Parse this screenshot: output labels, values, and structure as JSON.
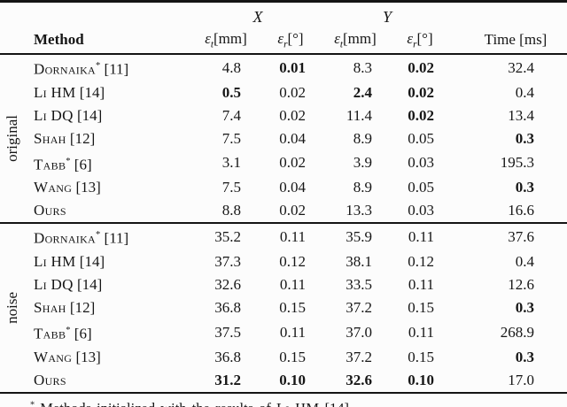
{
  "header": {
    "group_x": "X",
    "group_y": "Y",
    "method_label": "Method",
    "metric_columns": [
      {
        "symbol": "ε",
        "subscript": "t",
        "unit": "[mm]",
        "axis": "X"
      },
      {
        "symbol": "ε",
        "subscript": "r",
        "unit": "[°]",
        "axis": "X"
      },
      {
        "symbol": "ε",
        "subscript": "t",
        "unit": "[mm]",
        "axis": "Y"
      },
      {
        "symbol": "ε",
        "subscript": "r",
        "unit": "[°]",
        "axis": "Y"
      }
    ],
    "time_label": "Time [ms]"
  },
  "sections": [
    {
      "label": "original",
      "rows": [
        {
          "method": "Dornaika",
          "marker": "*",
          "ref": "[11]",
          "values": [
            {
              "v": "4.8",
              "bold": false
            },
            {
              "v": "0.01",
              "bold": true
            },
            {
              "v": "8.3",
              "bold": false
            },
            {
              "v": "0.02",
              "bold": true
            },
            {
              "v": "32.4",
              "bold": false
            }
          ]
        },
        {
          "method": "Li HM",
          "marker": "",
          "ref": "[14]",
          "values": [
            {
              "v": "0.5",
              "bold": true
            },
            {
              "v": "0.02",
              "bold": false
            },
            {
              "v": "2.4",
              "bold": true
            },
            {
              "v": "0.02",
              "bold": true
            },
            {
              "v": "0.4",
              "bold": false
            }
          ]
        },
        {
          "method": "Li DQ",
          "marker": "",
          "ref": "[14]",
          "values": [
            {
              "v": "7.4",
              "bold": false
            },
            {
              "v": "0.02",
              "bold": false
            },
            {
              "v": "11.4",
              "bold": false
            },
            {
              "v": "0.02",
              "bold": true
            },
            {
              "v": "13.4",
              "bold": false
            }
          ]
        },
        {
          "method": "Shah",
          "marker": "",
          "ref": "[12]",
          "values": [
            {
              "v": "7.5",
              "bold": false
            },
            {
              "v": "0.04",
              "bold": false
            },
            {
              "v": "8.9",
              "bold": false
            },
            {
              "v": "0.05",
              "bold": false
            },
            {
              "v": "0.3",
              "bold": true
            }
          ]
        },
        {
          "method": "Tabb",
          "marker": "*",
          "ref": "[6]",
          "values": [
            {
              "v": "3.1",
              "bold": false
            },
            {
              "v": "0.02",
              "bold": false
            },
            {
              "v": "3.9",
              "bold": false
            },
            {
              "v": "0.03",
              "bold": false
            },
            {
              "v": "195.3",
              "bold": false
            }
          ]
        },
        {
          "method": "Wang",
          "marker": "",
          "ref": "[13]",
          "values": [
            {
              "v": "7.5",
              "bold": false
            },
            {
              "v": "0.04",
              "bold": false
            },
            {
              "v": "8.9",
              "bold": false
            },
            {
              "v": "0.05",
              "bold": false
            },
            {
              "v": "0.3",
              "bold": true
            }
          ]
        },
        {
          "method": "Ours",
          "marker": "",
          "ref": "",
          "values": [
            {
              "v": "8.8",
              "bold": false
            },
            {
              "v": "0.02",
              "bold": false
            },
            {
              "v": "13.3",
              "bold": false
            },
            {
              "v": "0.03",
              "bold": false
            },
            {
              "v": "16.6",
              "bold": false
            }
          ]
        }
      ]
    },
    {
      "label": "noise",
      "rows": [
        {
          "method": "Dornaika",
          "marker": "*",
          "ref": "[11]",
          "values": [
            {
              "v": "35.2",
              "bold": false
            },
            {
              "v": "0.11",
              "bold": false
            },
            {
              "v": "35.9",
              "bold": false
            },
            {
              "v": "0.11",
              "bold": false
            },
            {
              "v": "37.6",
              "bold": false
            }
          ]
        },
        {
          "method": "Li HM",
          "marker": "",
          "ref": "[14]",
          "values": [
            {
              "v": "37.3",
              "bold": false
            },
            {
              "v": "0.12",
              "bold": false
            },
            {
              "v": "38.1",
              "bold": false
            },
            {
              "v": "0.12",
              "bold": false
            },
            {
              "v": "0.4",
              "bold": false
            }
          ]
        },
        {
          "method": "Li DQ",
          "marker": "",
          "ref": "[14]",
          "values": [
            {
              "v": "32.6",
              "bold": false
            },
            {
              "v": "0.11",
              "bold": false
            },
            {
              "v": "33.5",
              "bold": false
            },
            {
              "v": "0.11",
              "bold": false
            },
            {
              "v": "12.6",
              "bold": false
            }
          ]
        },
        {
          "method": "Shah",
          "marker": "",
          "ref": "[12]",
          "values": [
            {
              "v": "36.8",
              "bold": false
            },
            {
              "v": "0.15",
              "bold": false
            },
            {
              "v": "37.2",
              "bold": false
            },
            {
              "v": "0.15",
              "bold": false
            },
            {
              "v": "0.3",
              "bold": true
            }
          ]
        },
        {
          "method": "Tabb",
          "marker": "*",
          "ref": "[6]",
          "values": [
            {
              "v": "37.5",
              "bold": false
            },
            {
              "v": "0.11",
              "bold": false
            },
            {
              "v": "37.0",
              "bold": false
            },
            {
              "v": "0.11",
              "bold": false
            },
            {
              "v": "268.9",
              "bold": false
            }
          ]
        },
        {
          "method": "Wang",
          "marker": "",
          "ref": "[13]",
          "values": [
            {
              "v": "36.8",
              "bold": false
            },
            {
              "v": "0.15",
              "bold": false
            },
            {
              "v": "37.2",
              "bold": false
            },
            {
              "v": "0.15",
              "bold": false
            },
            {
              "v": "0.3",
              "bold": true
            }
          ]
        },
        {
          "method": "Ours",
          "marker": "",
          "ref": "",
          "values": [
            {
              "v": "31.2",
              "bold": true
            },
            {
              "v": "0.10",
              "bold": true
            },
            {
              "v": "32.6",
              "bold": true
            },
            {
              "v": "0.10",
              "bold": true
            },
            {
              "v": "17.0",
              "bold": false
            }
          ]
        }
      ]
    }
  ],
  "footnote": {
    "marker": "*",
    "text_before": "Methods initialized with the results of",
    "method": "Li HM",
    "ref": "[14]"
  },
  "colors": {
    "text": "#161616",
    "rule": "#141414",
    "background": "#fcfcfc"
  }
}
